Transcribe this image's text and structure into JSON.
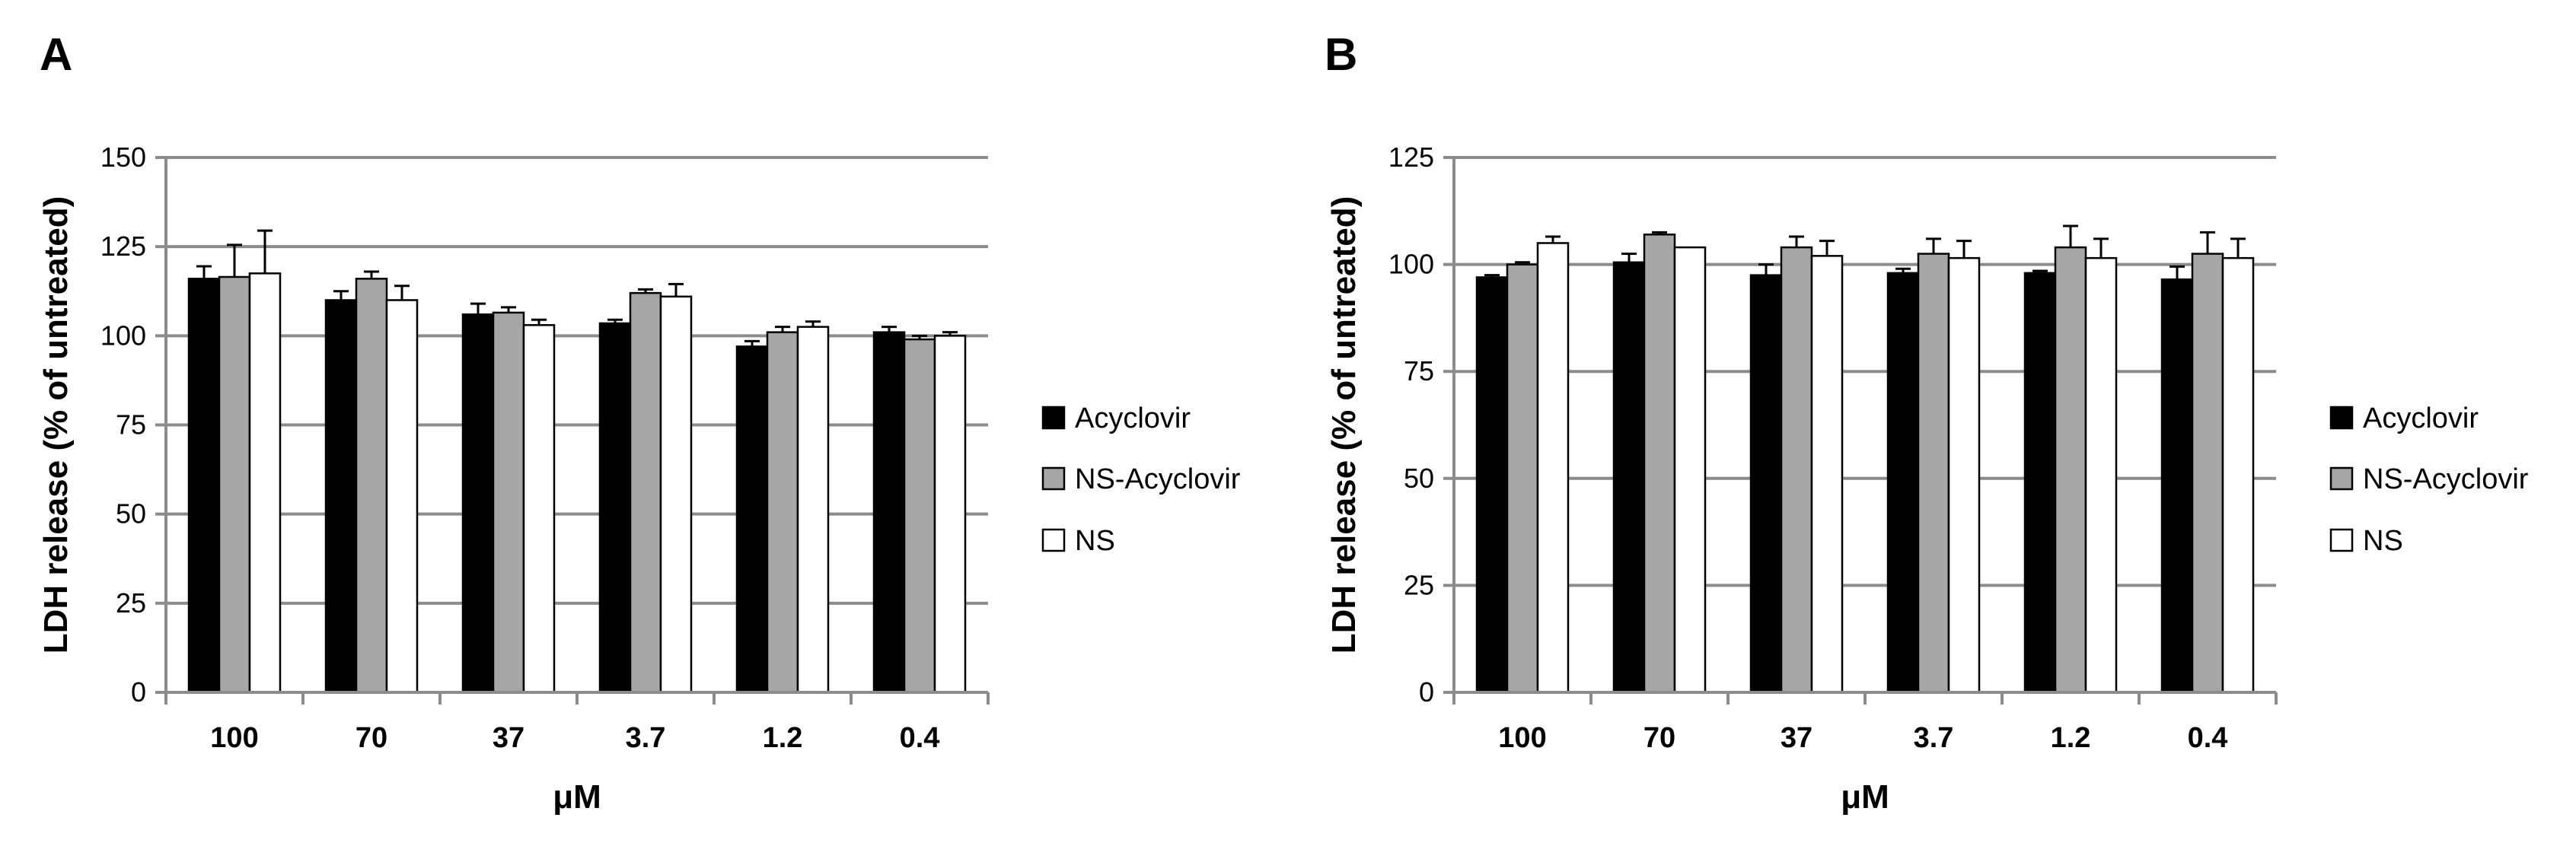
{
  "chart_data": [
    {
      "panel": "A",
      "type": "bar",
      "categories": [
        "100",
        "70",
        "37",
        "3.7",
        "1.2",
        "0.4"
      ],
      "series": [
        {
          "name": "Acyclovir",
          "color": "#000000",
          "values": [
            116,
            110,
            106,
            103.5,
            97,
            101
          ],
          "errors": [
            3.5,
            2.5,
            3,
            1,
            1.5,
            1.5
          ]
        },
        {
          "name": "NS-Acyclovir",
          "color": "#a6a6a6",
          "values": [
            116.5,
            116,
            106.5,
            112,
            101,
            99
          ],
          "errors": [
            9,
            2,
            1.5,
            1,
            1.5,
            1
          ]
        },
        {
          "name": "NS",
          "color": "#ffffff",
          "values": [
            117.5,
            110,
            103,
            111,
            102.5,
            100
          ],
          "errors": [
            12,
            4,
            1.5,
            3.5,
            1.5,
            1
          ]
        }
      ],
      "title": "",
      "xlabel": "μM",
      "ylabel": "LDH release (% of untreated)",
      "ylim": [
        0,
        150
      ],
      "yticks": [
        0,
        25,
        50,
        75,
        100,
        125,
        150
      ],
      "grid": true,
      "legend": "right"
    },
    {
      "panel": "B",
      "type": "bar",
      "categories": [
        "100",
        "70",
        "37",
        "3.7",
        "1.2",
        "0.4"
      ],
      "series": [
        {
          "name": "Acyclovir",
          "color": "#000000",
          "values": [
            97,
            100.5,
            97.5,
            98,
            98,
            96.5
          ],
          "errors": [
            0.5,
            2,
            2.5,
            1,
            0.5,
            3
          ]
        },
        {
          "name": "NS-Acyclovir",
          "color": "#a6a6a6",
          "values": [
            100,
            107,
            104,
            102.5,
            104,
            102.5
          ],
          "errors": [
            0.5,
            0.5,
            2.5,
            3.5,
            5,
            5
          ]
        },
        {
          "name": "NS",
          "color": "#ffffff",
          "values": [
            105,
            104,
            102,
            101.5,
            101.5,
            101.5
          ],
          "errors": [
            1.5,
            0,
            3.5,
            4,
            4.5,
            4.5
          ]
        }
      ],
      "title": "",
      "xlabel": "μM",
      "ylabel": "LDH release (% of untreated)",
      "ylim": [
        0,
        125
      ],
      "yticks": [
        0,
        25,
        50,
        75,
        100,
        125
      ],
      "grid": true,
      "legend": "right"
    }
  ]
}
